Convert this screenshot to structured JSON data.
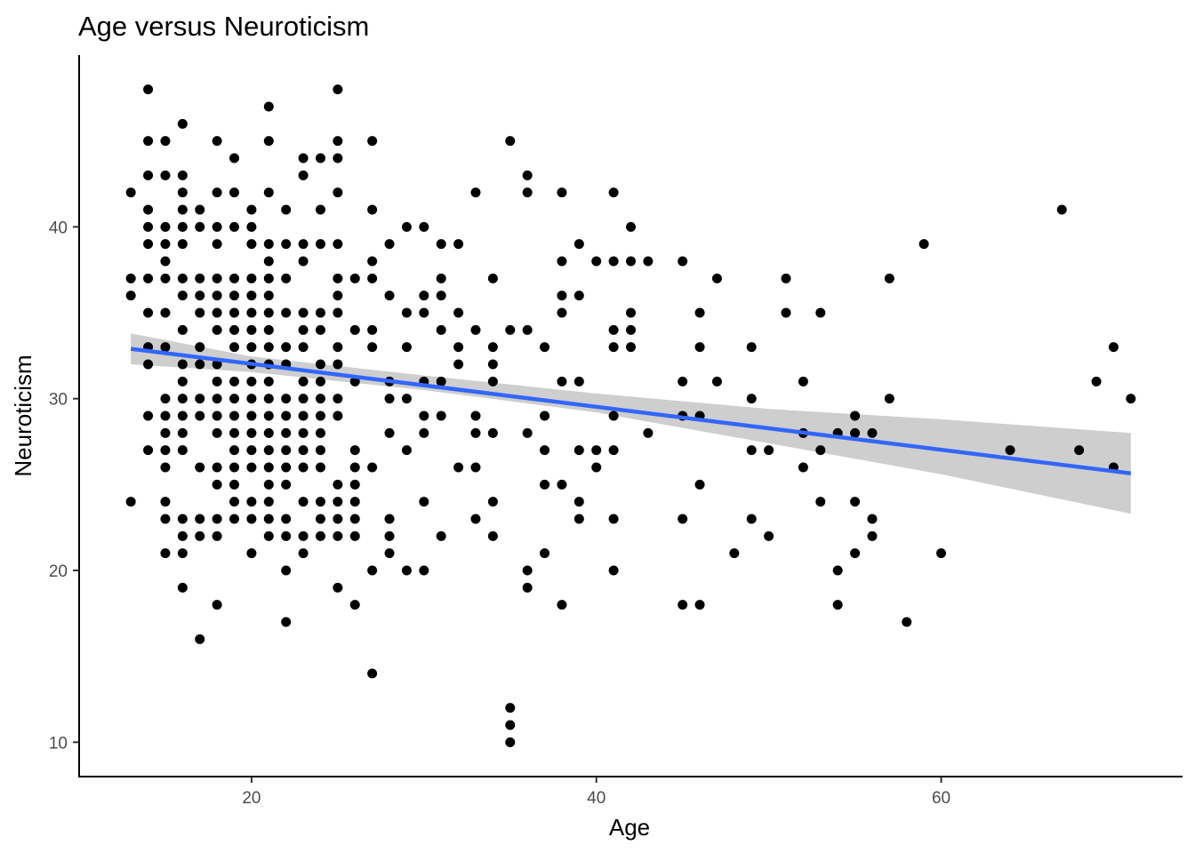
{
  "chart_data": {
    "type": "scatter",
    "title": "Age versus Neuroticism",
    "xlabel": "Age",
    "ylabel": "Neuroticism",
    "xlim": [
      10,
      74
    ],
    "ylim": [
      8,
      50
    ],
    "xticks": [
      20,
      40,
      60
    ],
    "yticks": [
      10,
      20,
      30,
      40
    ],
    "grid": false,
    "colors": {
      "points": "#000000",
      "fit_line": "#3366FF",
      "ci_band": "#BEBEBE",
      "axis": "#000000",
      "tick_label": "#4D4D4D"
    },
    "points": [
      [
        13,
        42
      ],
      [
        13,
        37
      ],
      [
        13,
        36
      ],
      [
        13,
        24
      ],
      [
        14,
        48
      ],
      [
        14,
        45
      ],
      [
        14,
        43
      ],
      [
        14,
        41
      ],
      [
        14,
        40
      ],
      [
        14,
        39
      ],
      [
        14,
        37
      ],
      [
        14,
        35
      ],
      [
        14,
        33
      ],
      [
        14,
        32
      ],
      [
        14,
        29
      ],
      [
        14,
        27
      ],
      [
        15,
        45
      ],
      [
        15,
        43
      ],
      [
        15,
        40
      ],
      [
        15,
        39
      ],
      [
        15,
        38
      ],
      [
        15,
        37
      ],
      [
        15,
        35
      ],
      [
        15,
        33
      ],
      [
        15,
        30
      ],
      [
        15,
        29
      ],
      [
        15,
        28
      ],
      [
        15,
        27
      ],
      [
        15,
        26
      ],
      [
        15,
        24
      ],
      [
        15,
        23
      ],
      [
        15,
        21
      ],
      [
        16,
        46
      ],
      [
        16,
        43
      ],
      [
        16,
        42
      ],
      [
        16,
        41
      ],
      [
        16,
        40
      ],
      [
        16,
        39
      ],
      [
        16,
        37
      ],
      [
        16,
        36
      ],
      [
        16,
        34
      ],
      [
        16,
        32
      ],
      [
        16,
        31
      ],
      [
        16,
        30
      ],
      [
        16,
        29
      ],
      [
        16,
        28
      ],
      [
        16,
        27
      ],
      [
        16,
        23
      ],
      [
        16,
        22
      ],
      [
        16,
        21
      ],
      [
        16,
        19
      ],
      [
        17,
        41
      ],
      [
        17,
        40
      ],
      [
        17,
        37
      ],
      [
        17,
        36
      ],
      [
        17,
        35
      ],
      [
        17,
        33
      ],
      [
        17,
        32
      ],
      [
        17,
        30
      ],
      [
        17,
        29
      ],
      [
        17,
        26
      ],
      [
        17,
        23
      ],
      [
        17,
        22
      ],
      [
        17,
        16
      ],
      [
        18,
        45
      ],
      [
        18,
        42
      ],
      [
        18,
        40
      ],
      [
        18,
        39
      ],
      [
        18,
        37
      ],
      [
        18,
        36
      ],
      [
        18,
        35
      ],
      [
        18,
        34
      ],
      [
        18,
        32
      ],
      [
        18,
        31
      ],
      [
        18,
        30
      ],
      [
        18,
        29
      ],
      [
        18,
        28
      ],
      [
        18,
        26
      ],
      [
        18,
        25
      ],
      [
        18,
        23
      ],
      [
        18,
        22
      ],
      [
        18,
        18
      ],
      [
        19,
        44
      ],
      [
        19,
        42
      ],
      [
        19,
        40
      ],
      [
        19,
        37
      ],
      [
        19,
        36
      ],
      [
        19,
        35
      ],
      [
        19,
        34
      ],
      [
        19,
        33
      ],
      [
        19,
        31
      ],
      [
        19,
        30
      ],
      [
        19,
        29
      ],
      [
        19,
        28
      ],
      [
        19,
        27
      ],
      [
        19,
        26
      ],
      [
        19,
        25
      ],
      [
        19,
        24
      ],
      [
        19,
        23
      ],
      [
        20,
        41
      ],
      [
        20,
        40
      ],
      [
        20,
        39
      ],
      [
        20,
        37
      ],
      [
        20,
        36
      ],
      [
        20,
        35
      ],
      [
        20,
        34
      ],
      [
        20,
        33
      ],
      [
        20,
        32
      ],
      [
        20,
        31
      ],
      [
        20,
        30
      ],
      [
        20,
        29
      ],
      [
        20,
        28
      ],
      [
        20,
        27
      ],
      [
        20,
        26
      ],
      [
        20,
        24
      ],
      [
        20,
        23
      ],
      [
        20,
        21
      ],
      [
        21,
        47
      ],
      [
        21,
        45
      ],
      [
        21,
        42
      ],
      [
        21,
        39
      ],
      [
        21,
        38
      ],
      [
        21,
        37
      ],
      [
        21,
        36
      ],
      [
        21,
        35
      ],
      [
        21,
        34
      ],
      [
        21,
        33
      ],
      [
        21,
        32
      ],
      [
        21,
        31
      ],
      [
        21,
        30
      ],
      [
        21,
        29
      ],
      [
        21,
        28
      ],
      [
        21,
        27
      ],
      [
        21,
        26
      ],
      [
        21,
        25
      ],
      [
        21,
        24
      ],
      [
        21,
        23
      ],
      [
        21,
        22
      ],
      [
        22,
        41
      ],
      [
        22,
        39
      ],
      [
        22,
        37
      ],
      [
        22,
        35
      ],
      [
        22,
        33
      ],
      [
        22,
        32
      ],
      [
        22,
        30
      ],
      [
        22,
        29
      ],
      [
        22,
        28
      ],
      [
        22,
        27
      ],
      [
        22,
        26
      ],
      [
        22,
        25
      ],
      [
        22,
        23
      ],
      [
        22,
        22
      ],
      [
        22,
        20
      ],
      [
        22,
        17
      ],
      [
        23,
        44
      ],
      [
        23,
        43
      ],
      [
        23,
        39
      ],
      [
        23,
        38
      ],
      [
        23,
        35
      ],
      [
        23,
        34
      ],
      [
        23,
        33
      ],
      [
        23,
        31
      ],
      [
        23,
        30
      ],
      [
        23,
        29
      ],
      [
        23,
        28
      ],
      [
        23,
        27
      ],
      [
        23,
        26
      ],
      [
        23,
        24
      ],
      [
        23,
        22
      ],
      [
        23,
        21
      ],
      [
        24,
        44
      ],
      [
        24,
        41
      ],
      [
        24,
        39
      ],
      [
        24,
        35
      ],
      [
        24,
        34
      ],
      [
        24,
        32
      ],
      [
        24,
        31
      ],
      [
        24,
        30
      ],
      [
        24,
        29
      ],
      [
        24,
        28
      ],
      [
        24,
        27
      ],
      [
        24,
        26
      ],
      [
        24,
        24
      ],
      [
        24,
        23
      ],
      [
        24,
        22
      ],
      [
        25,
        48
      ],
      [
        25,
        45
      ],
      [
        25,
        44
      ],
      [
        25,
        42
      ],
      [
        25,
        39
      ],
      [
        25,
        37
      ],
      [
        25,
        36
      ],
      [
        25,
        35
      ],
      [
        25,
        33
      ],
      [
        25,
        32
      ],
      [
        25,
        30
      ],
      [
        25,
        29
      ],
      [
        25,
        25
      ],
      [
        25,
        24
      ],
      [
        25,
        23
      ],
      [
        25,
        22
      ],
      [
        25,
        19
      ],
      [
        26,
        37
      ],
      [
        26,
        34
      ],
      [
        26,
        31
      ],
      [
        26,
        27
      ],
      [
        26,
        26
      ],
      [
        26,
        25
      ],
      [
        26,
        24
      ],
      [
        26,
        23
      ],
      [
        26,
        22
      ],
      [
        26,
        18
      ],
      [
        27,
        45
      ],
      [
        27,
        41
      ],
      [
        27,
        38
      ],
      [
        27,
        37
      ],
      [
        27,
        34
      ],
      [
        27,
        33
      ],
      [
        27,
        26
      ],
      [
        27,
        20
      ],
      [
        27,
        14
      ],
      [
        28,
        39
      ],
      [
        28,
        36
      ],
      [
        28,
        31
      ],
      [
        28,
        30
      ],
      [
        28,
        28
      ],
      [
        28,
        23
      ],
      [
        28,
        22
      ],
      [
        28,
        21
      ],
      [
        29,
        40
      ],
      [
        29,
        35
      ],
      [
        29,
        33
      ],
      [
        29,
        30
      ],
      [
        29,
        27
      ],
      [
        29,
        20
      ],
      [
        30,
        40
      ],
      [
        30,
        36
      ],
      [
        30,
        35
      ],
      [
        30,
        31
      ],
      [
        30,
        29
      ],
      [
        30,
        28
      ],
      [
        30,
        24
      ],
      [
        30,
        20
      ],
      [
        31,
        39
      ],
      [
        31,
        37
      ],
      [
        31,
        36
      ],
      [
        31,
        34
      ],
      [
        31,
        31
      ],
      [
        31,
        29
      ],
      [
        31,
        22
      ],
      [
        32,
        39
      ],
      [
        32,
        35
      ],
      [
        32,
        33
      ],
      [
        32,
        32
      ],
      [
        32,
        26
      ],
      [
        33,
        42
      ],
      [
        33,
        34
      ],
      [
        33,
        29
      ],
      [
        33,
        28
      ],
      [
        33,
        26
      ],
      [
        33,
        23
      ],
      [
        34,
        37
      ],
      [
        34,
        33
      ],
      [
        34,
        32
      ],
      [
        34,
        31
      ],
      [
        34,
        28
      ],
      [
        34,
        24
      ],
      [
        34,
        22
      ],
      [
        35,
        45
      ],
      [
        35,
        34
      ],
      [
        35,
        12
      ],
      [
        35,
        11
      ],
      [
        35,
        10
      ],
      [
        36,
        43
      ],
      [
        36,
        42
      ],
      [
        36,
        34
      ],
      [
        36,
        28
      ],
      [
        36,
        20
      ],
      [
        36,
        19
      ],
      [
        37,
        33
      ],
      [
        37,
        29
      ],
      [
        37,
        27
      ],
      [
        37,
        25
      ],
      [
        37,
        21
      ],
      [
        38,
        42
      ],
      [
        38,
        38
      ],
      [
        38,
        36
      ],
      [
        38,
        35
      ],
      [
        38,
        31
      ],
      [
        38,
        25
      ],
      [
        38,
        18
      ],
      [
        39,
        39
      ],
      [
        39,
        36
      ],
      [
        39,
        31
      ],
      [
        39,
        27
      ],
      [
        39,
        24
      ],
      [
        39,
        23
      ],
      [
        40,
        38
      ],
      [
        40,
        27
      ],
      [
        40,
        26
      ],
      [
        41,
        42
      ],
      [
        41,
        38
      ],
      [
        41,
        34
      ],
      [
        41,
        33
      ],
      [
        41,
        29
      ],
      [
        41,
        27
      ],
      [
        41,
        23
      ],
      [
        41,
        20
      ],
      [
        42,
        40
      ],
      [
        42,
        38
      ],
      [
        42,
        35
      ],
      [
        42,
        34
      ],
      [
        42,
        33
      ],
      [
        43,
        38
      ],
      [
        43,
        28
      ],
      [
        45,
        38
      ],
      [
        45,
        31
      ],
      [
        45,
        29
      ],
      [
        45,
        23
      ],
      [
        45,
        18
      ],
      [
        46,
        35
      ],
      [
        46,
        33
      ],
      [
        46,
        29
      ],
      [
        46,
        25
      ],
      [
        46,
        18
      ],
      [
        47,
        37
      ],
      [
        47,
        31
      ],
      [
        48,
        21
      ],
      [
        49,
        33
      ],
      [
        49,
        30
      ],
      [
        49,
        27
      ],
      [
        49,
        23
      ],
      [
        50,
        27
      ],
      [
        50,
        22
      ],
      [
        51,
        37
      ],
      [
        51,
        35
      ],
      [
        52,
        31
      ],
      [
        52,
        28
      ],
      [
        52,
        26
      ],
      [
        53,
        35
      ],
      [
        53,
        27
      ],
      [
        53,
        24
      ],
      [
        54,
        28
      ],
      [
        54,
        20
      ],
      [
        54,
        18
      ],
      [
        55,
        29
      ],
      [
        55,
        28
      ],
      [
        55,
        24
      ],
      [
        55,
        21
      ],
      [
        56,
        28
      ],
      [
        56,
        23
      ],
      [
        56,
        22
      ],
      [
        57,
        37
      ],
      [
        57,
        30
      ],
      [
        58,
        17
      ],
      [
        59,
        39
      ],
      [
        60,
        21
      ],
      [
        64,
        27
      ],
      [
        67,
        41
      ],
      [
        68,
        27
      ],
      [
        69,
        31
      ],
      [
        70,
        33
      ],
      [
        70,
        26
      ],
      [
        71,
        30
      ]
    ],
    "fit_line": {
      "x_start": 13,
      "y_start": 32.9,
      "x_end": 71,
      "y_end": 25.65
    },
    "confidence_band": {
      "x": [
        13,
        20,
        30,
        40,
        50,
        60,
        71
      ],
      "lower": [
        32.0,
        31.55,
        30.5,
        29.2,
        27.4,
        25.6,
        23.3
      ],
      "upper": [
        33.8,
        32.45,
        31.35,
        30.3,
        29.4,
        28.8,
        28.0
      ]
    }
  }
}
